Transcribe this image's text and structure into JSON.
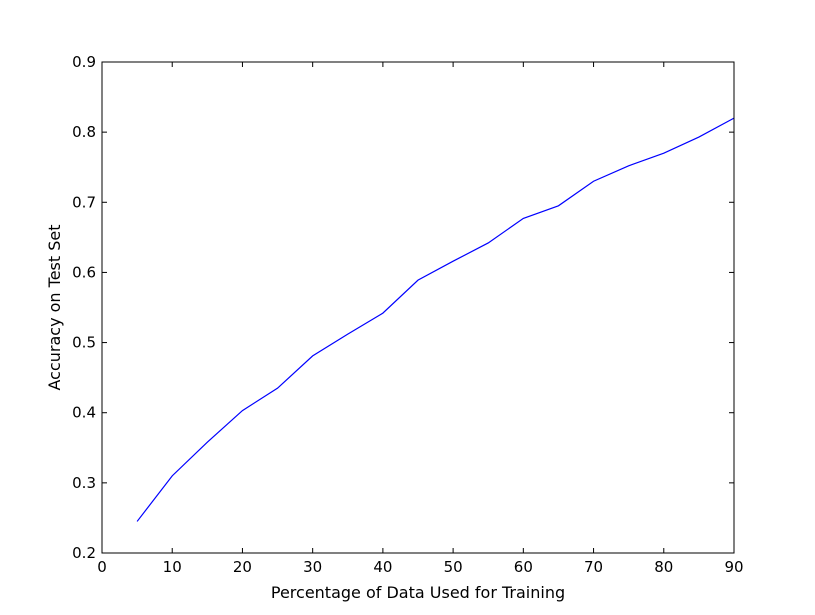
{
  "chart_data": {
    "type": "line",
    "title": "",
    "xlabel": "Percentage of Data Used for Training",
    "ylabel": "Accuracy on Test Set",
    "xlim": [
      0,
      90
    ],
    "ylim": [
      0.2,
      0.9
    ],
    "xticks": [
      0,
      10,
      20,
      30,
      40,
      50,
      60,
      70,
      80,
      90
    ],
    "xtick_labels": [
      "0",
      "10",
      "20",
      "30",
      "40",
      "50",
      "60",
      "70",
      "80",
      "90"
    ],
    "yticks": [
      0.2,
      0.3,
      0.4,
      0.5,
      0.6,
      0.7,
      0.8,
      0.9
    ],
    "ytick_labels": [
      "0.2",
      "0.3",
      "0.4",
      "0.5",
      "0.6",
      "0.7",
      "0.8",
      "0.9"
    ],
    "grid": false,
    "series": [
      {
        "color": "#0000ff",
        "x": [
          5,
          10,
          15,
          20,
          25,
          30,
          35,
          40,
          45,
          50,
          55,
          60,
          65,
          70,
          75,
          80,
          85,
          90
        ],
        "y": [
          0.245,
          0.31,
          0.358,
          0.403,
          0.435,
          0.481,
          0.512,
          0.542,
          0.589,
          0.616,
          0.642,
          0.677,
          0.695,
          0.73,
          0.752,
          0.77,
          0.793,
          0.82
        ]
      }
    ]
  }
}
